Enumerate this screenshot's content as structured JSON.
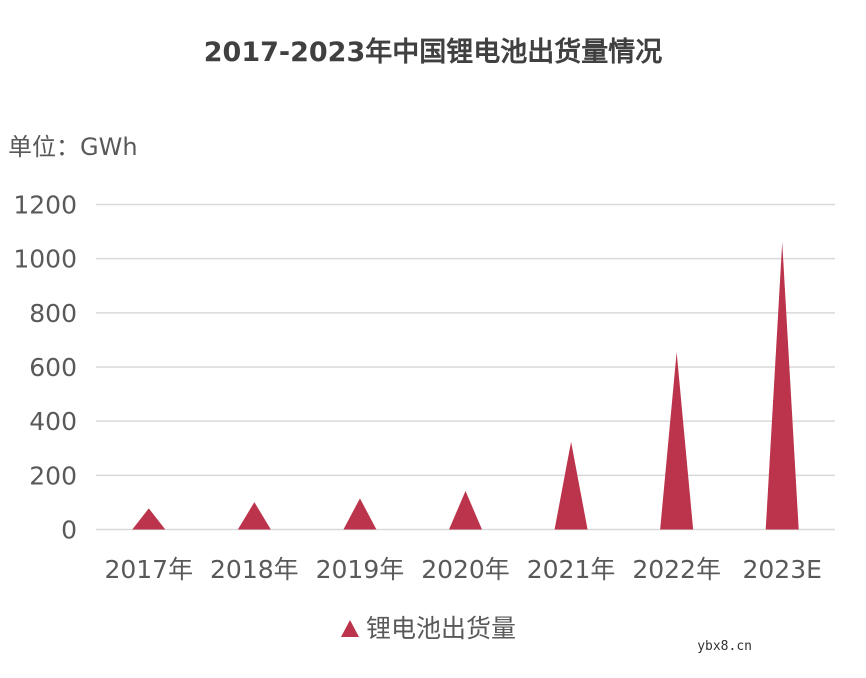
{
  "chart_data": {
    "type": "bar",
    "bar_shape": "triangle",
    "title": "2017-2023年中国锂电池出货量情况",
    "unit_label": "单位：GWh",
    "categories": [
      "2017年",
      "2018年",
      "2019年",
      "2020年",
      "2021年",
      "2022年",
      "2023E"
    ],
    "series": [
      {
        "name": "锂电池出货量",
        "values": [
          78,
          101,
          115,
          142,
          324,
          655,
          1060
        ],
        "color": "#BB344B"
      }
    ],
    "ylim": [
      0,
      1200
    ],
    "yticks": [
      0,
      200,
      400,
      600,
      800,
      1000,
      1200
    ],
    "grid": true,
    "legend_position": "bottom"
  },
  "watermark": "ybx8.cn"
}
